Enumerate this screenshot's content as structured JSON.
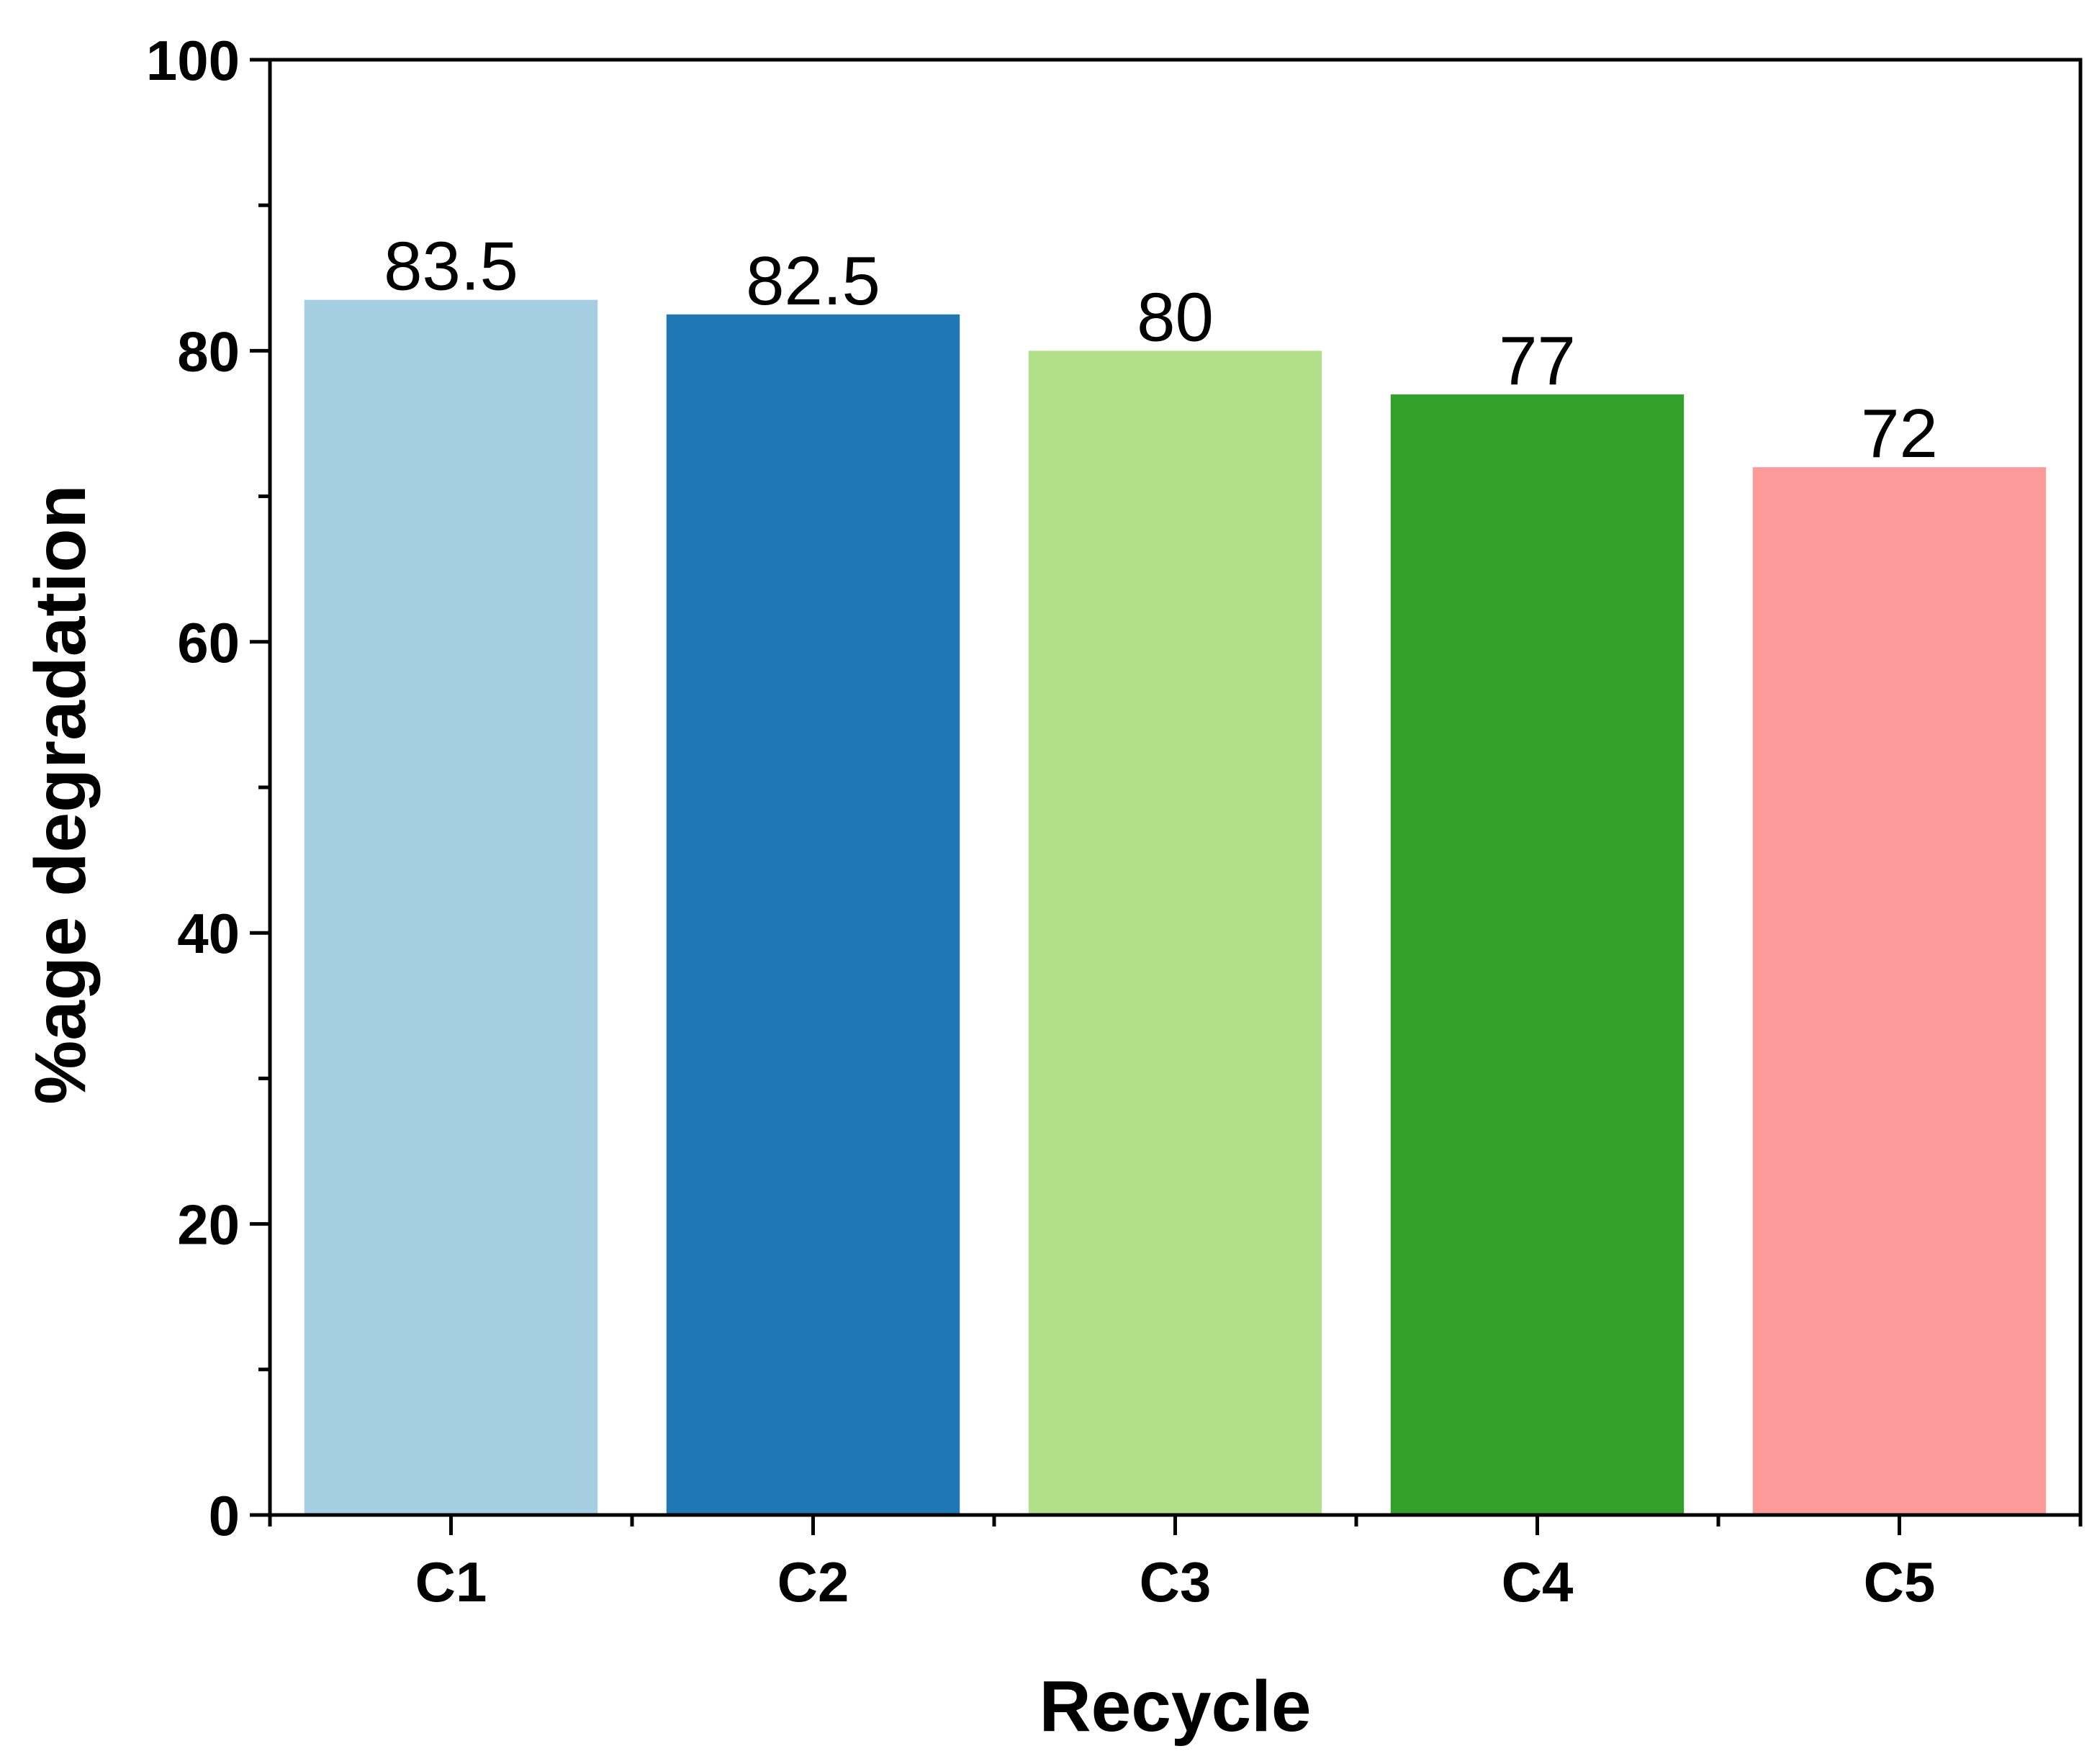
{
  "chart_data": {
    "type": "bar",
    "categories": [
      "C1",
      "C2",
      "C3",
      "C4",
      "C5"
    ],
    "values": [
      83.5,
      82.5,
      80,
      77,
      72
    ],
    "data_labels": [
      "83.5",
      "82.5",
      "80",
      "77",
      "72"
    ],
    "colors": [
      "#a6cee3",
      "#1f78b4",
      "#b2df8a",
      "#33a02c",
      "#fb9a99"
    ],
    "title": "",
    "xlabel": "Recycle",
    "ylabel": "%age degradation",
    "ylim": [
      0,
      100
    ],
    "yticks": [
      "0",
      "20",
      "40",
      "60",
      "80",
      "100"
    ],
    "grid": false,
    "legend": "none"
  }
}
